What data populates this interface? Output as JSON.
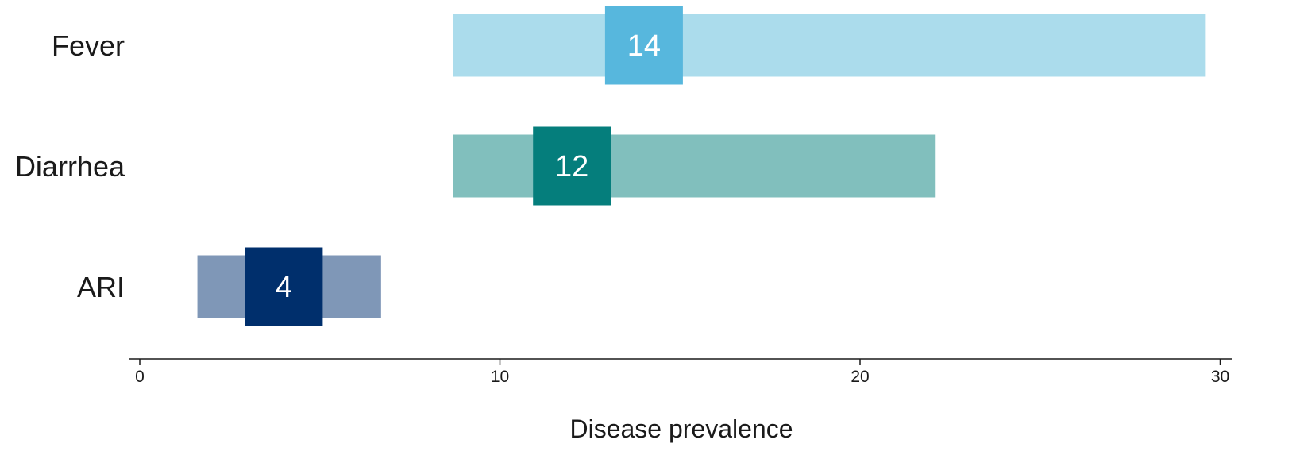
{
  "chart_data": {
    "type": "bar",
    "xlabel": "Disease prevalence",
    "xlim": [
      0,
      30
    ],
    "xticks": [
      0,
      10,
      20,
      30
    ],
    "grid": false,
    "legend": "none",
    "categories": [
      "Fever",
      "Diarrhea",
      "ARI"
    ],
    "series": [
      {
        "values": [
          14,
          12,
          4
        ],
        "range_low": [
          8.7,
          8.7,
          1.6
        ],
        "range_high": [
          29.6,
          22.1,
          6.7
        ]
      }
    ],
    "colors": {
      "Fever": {
        "range": "#abdcec",
        "point": "#57b7dd"
      },
      "Diarrhea": {
        "range": "#81bfbd",
        "point": "#057e7c"
      },
      "ARI": {
        "range": "#7f97b7",
        "point": "#002f6c"
      }
    }
  }
}
